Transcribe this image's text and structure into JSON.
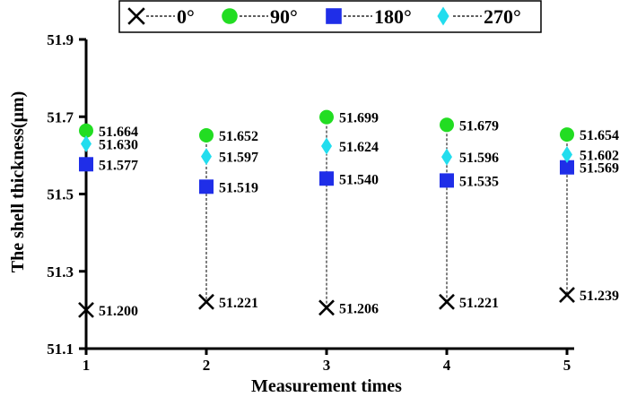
{
  "chart_data": {
    "type": "scatter",
    "xlabel": "Measurement times",
    "ylabel": "The shell thickness(μm)",
    "x": [
      1,
      2,
      3,
      4,
      5
    ],
    "xticks": [
      "1",
      "2",
      "3",
      "4",
      "5"
    ],
    "xlim": [
      1,
      5
    ],
    "ylim": [
      51.1,
      51.9
    ],
    "yticks": [
      "51.1",
      "51.3",
      "51.5",
      "51.7",
      "51.9"
    ],
    "legend_position": "top",
    "series": [
      {
        "name": "0°",
        "marker": "x",
        "color": "#000000",
        "values": [
          51.2,
          51.221,
          51.206,
          51.221,
          51.239
        ],
        "labels": [
          "51.200",
          "51.221",
          "51.206",
          "51.221",
          "51.239"
        ]
      },
      {
        "name": "90°",
        "marker": "circle",
        "color": "#22dd22",
        "values": [
          51.664,
          51.652,
          51.699,
          51.679,
          51.654
        ],
        "labels": [
          "51.664",
          "51.652",
          "51.699",
          "51.679",
          "51.654"
        ]
      },
      {
        "name": "180°",
        "marker": "square",
        "color": "#1f2ee8",
        "values": [
          51.577,
          51.519,
          51.54,
          51.535,
          51.569
        ],
        "labels": [
          "51.577",
          "51.519",
          "51.540",
          "51.535",
          "51.569"
        ]
      },
      {
        "name": "270°",
        "marker": "diamond",
        "color": "#22ddee",
        "values": [
          51.63,
          51.597,
          51.624,
          51.596,
          51.602
        ],
        "labels": [
          "51.630",
          "51.597",
          "51.624",
          "51.596",
          "51.602"
        ]
      }
    ]
  }
}
